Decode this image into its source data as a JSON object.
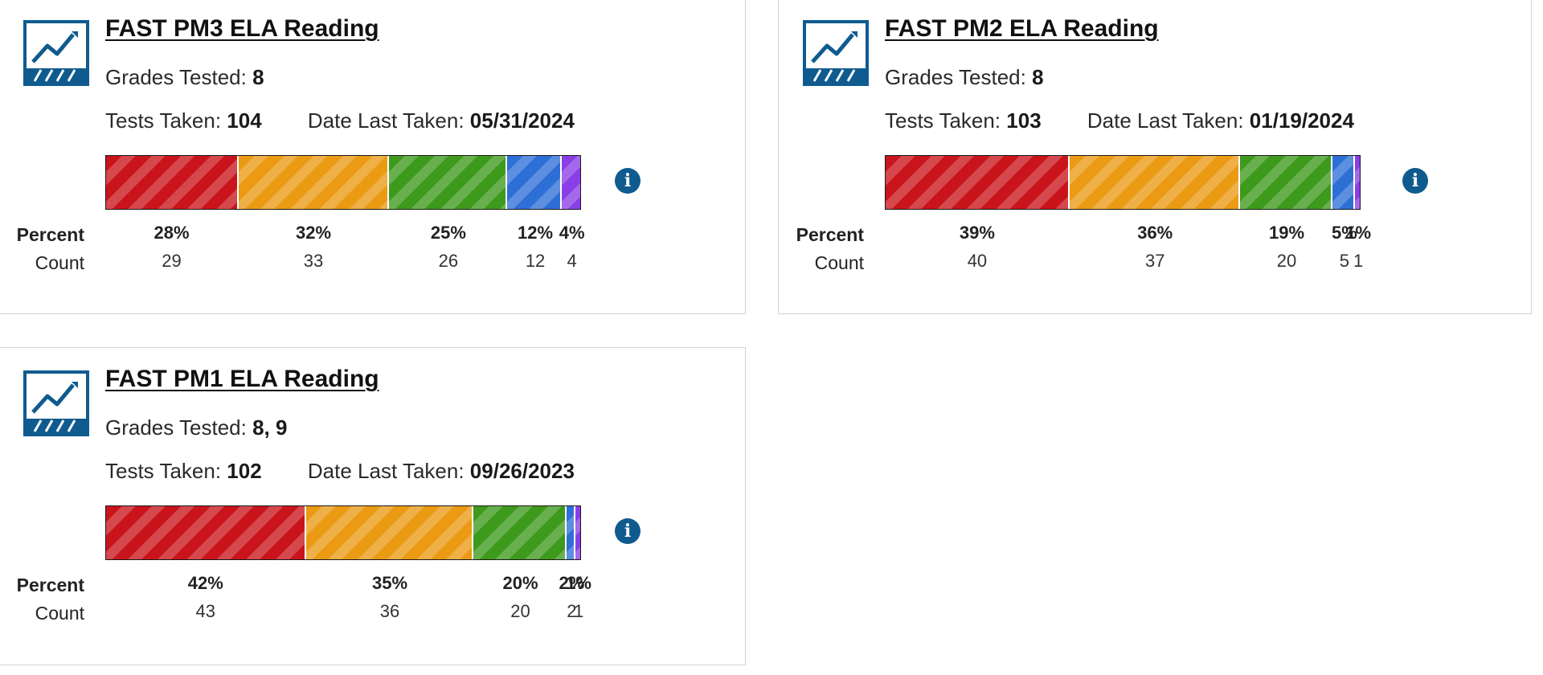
{
  "labels": {
    "grades": "Grades Tested:",
    "tests": "Tests Taken:",
    "date": "Date Last Taken:",
    "percent": "Percent",
    "count": "Count",
    "info": "i"
  },
  "colors": {
    "level1": "#c9141b",
    "level2": "#eb9a14",
    "level3": "#3d9a1c",
    "level4": "#2e6fd6",
    "level5": "#8a3fe6",
    "accent": "#0f5b8f"
  },
  "icons": {
    "logo": "chart-trend-icon",
    "info": "info-icon"
  },
  "cards": [
    {
      "title": "FAST PM3 ELA Reading",
      "grades": "8",
      "tests": "104",
      "date": "05/31/2024",
      "segments": [
        {
          "percent": "28%",
          "count": "29",
          "value": 29
        },
        {
          "percent": "32%",
          "count": "33",
          "value": 33
        },
        {
          "percent": "25%",
          "count": "26",
          "value": 26
        },
        {
          "percent": "12%",
          "count": "12",
          "value": 12
        },
        {
          "percent": "4%",
          "count": "4",
          "value": 4
        }
      ]
    },
    {
      "title": "FAST PM2 ELA Reading",
      "grades": "8",
      "tests": "103",
      "date": "01/19/2024",
      "segments": [
        {
          "percent": "39%",
          "count": "40",
          "value": 40
        },
        {
          "percent": "36%",
          "count": "37",
          "value": 37
        },
        {
          "percent": "19%",
          "count": "20",
          "value": 20
        },
        {
          "percent": "5%",
          "count": "5",
          "value": 5
        },
        {
          "percent": "1%",
          "count": "1",
          "value": 1
        }
      ]
    },
    {
      "title": "FAST PM1 ELA Reading",
      "grades": "8, 9",
      "tests": "102",
      "date": "09/26/2023",
      "segments": [
        {
          "percent": "42%",
          "count": "43",
          "value": 43
        },
        {
          "percent": "35%",
          "count": "36",
          "value": 36
        },
        {
          "percent": "20%",
          "count": "20",
          "value": 20
        },
        {
          "percent": "2%",
          "count": "2",
          "value": 2
        },
        {
          "percent": "1%",
          "count": "1",
          "value": 1
        }
      ]
    }
  ]
}
